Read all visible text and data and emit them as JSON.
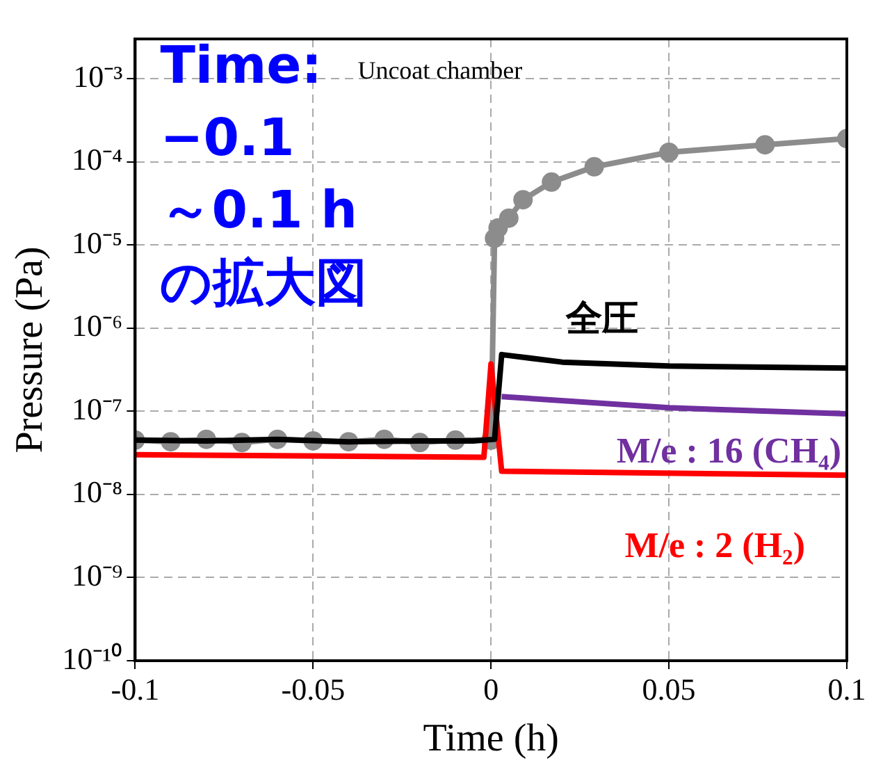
{
  "chart_data": {
    "type": "line",
    "xlabel": "Time (h)",
    "ylabel": "Pressure (Pa)",
    "xlim": [
      -0.1,
      0.1
    ],
    "xticks": [
      -0.1,
      -0.05,
      0,
      0.05,
      0.1
    ],
    "ylim": [
      1e-10,
      0.003
    ],
    "log": "y",
    "grid": true,
    "line_style": "solid",
    "yticks": [
      {
        "value": 1e-10,
        "label": "10⁻¹⁰"
      },
      {
        "value": 1e-09,
        "label": "10⁻⁹"
      },
      {
        "value": 1e-08,
        "label": "10⁻⁸"
      },
      {
        "value": 1e-07,
        "label": "10⁻⁷"
      },
      {
        "value": 1e-06,
        "label": "10⁻⁶"
      },
      {
        "value": 1e-05,
        "label": "10⁻⁵"
      },
      {
        "value": 0.0001,
        "label": "10⁻⁴"
      },
      {
        "value": 0.001,
        "label": "10⁻³"
      }
    ],
    "annotations": [
      "Time:\n−0.1\n～0.1 h\nの拡大図",
      "Uncoat chamber"
    ],
    "series": [
      {
        "color": "#8c8c8c",
        "marker": "circle",
        "x": [
          -0.1,
          -0.09,
          -0.08,
          -0.07,
          -0.06,
          -0.05,
          -0.04,
          -0.03,
          -0.02,
          -0.01,
          0,
          0.001,
          0.002,
          0.005,
          0.009,
          0.017,
          0.029,
          0.05,
          0.077,
          0.1
        ],
        "values": [
          4.5e-08,
          4.3e-08,
          4.6e-08,
          4.2e-08,
          4.6e-08,
          4.4e-08,
          4.3e-08,
          4.6e-08,
          4.2e-08,
          4.5e-08,
          4.5e-08,
          1.2e-05,
          1.6e-05,
          2.1e-05,
          3.5e-05,
          5.7e-05,
          8.7e-05,
          0.00013,
          0.00016,
          0.00019
        ]
      },
      {
        "name": "M/e : 2 (H₂)",
        "color": "#ff0000",
        "marker": "none",
        "x": [
          -0.1,
          -0.002,
          0,
          0.003,
          0.1
        ],
        "values": [
          3e-08,
          2.8e-08,
          3.7e-07,
          1.9e-08,
          1.7e-08
        ]
      },
      {
        "name": "M/e : 16 (CH₄)",
        "color": "#7030a0",
        "marker": "none",
        "x": [
          0.003,
          0.05,
          0.1
        ],
        "values": [
          1.5e-07,
          1.1e-07,
          9.3e-08
        ]
      },
      {
        "name": "全圧",
        "color": "#000000",
        "marker": "none",
        "x": [
          -0.1,
          -0.08,
          -0.06,
          -0.04,
          -0.02,
          -0.005,
          0.001,
          0.003,
          0.02,
          0.05,
          0.1
        ],
        "values": [
          4.5e-08,
          4.4e-08,
          4.6e-08,
          4.3e-08,
          4.4e-08,
          4.4e-08,
          4.6e-08,
          4.8e-07,
          3.9e-07,
          3.5e-07,
          3.3e-07
        ]
      }
    ]
  }
}
